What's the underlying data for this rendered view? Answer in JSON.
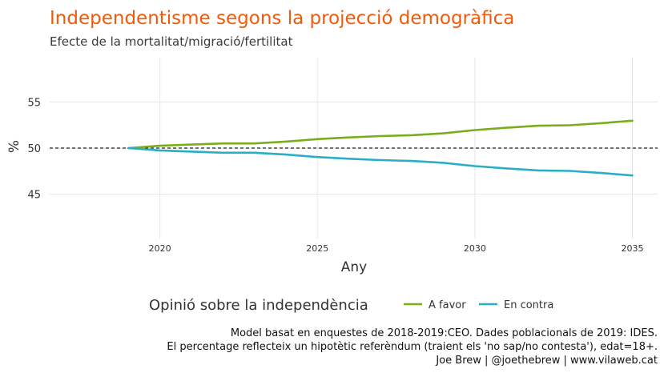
{
  "chart_data": {
    "type": "line",
    "title": "Independentisme segons la projecció demogràfica",
    "subtitle": "Efecte de la mortalitat/migració/fertilitat",
    "xlabel": "Any",
    "ylabel": "%",
    "xlim": [
      2016.5,
      2035.8
    ],
    "ylim": [
      40.2,
      59.8
    ],
    "x_ticks": [
      2020,
      2025,
      2030,
      2035
    ],
    "y_ticks": [
      45,
      50,
      55
    ],
    "grid": true,
    "reference_line": {
      "y": 50,
      "style": "dashed"
    },
    "legend": {
      "title": "Opinió sobre la independència",
      "position": "bottom"
    },
    "x": [
      2019,
      2020,
      2021,
      2022,
      2023,
      2024,
      2025,
      2026,
      2027,
      2028,
      2029,
      2030,
      2031,
      2032,
      2033,
      2034,
      2035
    ],
    "series": [
      {
        "name": "A favor",
        "color": "#7aac1c",
        "values": [
          50.0,
          50.25,
          50.38,
          50.5,
          50.5,
          50.7,
          50.97,
          51.15,
          51.3,
          51.4,
          51.6,
          51.95,
          52.2,
          52.42,
          52.47,
          52.7,
          52.97
        ]
      },
      {
        "name": "En contra",
        "color": "#2aaec6",
        "values": [
          50.0,
          49.75,
          49.62,
          49.5,
          49.5,
          49.3,
          49.03,
          48.85,
          48.7,
          48.6,
          48.4,
          48.05,
          47.8,
          47.58,
          47.53,
          47.3,
          47.03
        ]
      }
    ],
    "caption": [
      "Model basat en enquestes de 2018-2019:CEO. Dades poblacionals de 2019: IDES.",
      "El percentage reflecteix un hipotètic referèndum (traient els 'no sap/no contesta'), edat=18+.",
      "Joe Brew | @joethebrew | www.vilaweb.cat"
    ]
  }
}
